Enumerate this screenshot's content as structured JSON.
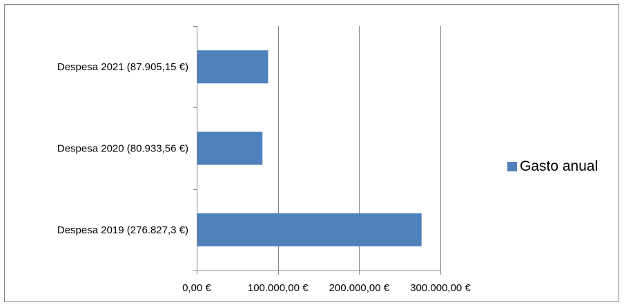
{
  "chart_data": {
    "type": "bar",
    "orientation": "horizontal",
    "title": "",
    "xlabel": "",
    "ylabel": "",
    "categories": [
      "Despesa 2019 (276.827,3 €)",
      "Despesa 2020 (80.933,56 €)",
      "Despesa 2021 (87.905,15 €)"
    ],
    "series": [
      {
        "name": "Gasto anual",
        "values": [
          276827.3,
          80933.56,
          87905.15
        ],
        "color": "#4F81BD"
      }
    ],
    "xlim": [
      0,
      300000
    ],
    "x_ticks": [
      0,
      100000,
      200000,
      300000
    ],
    "x_tick_labels": [
      "0,00 €",
      "100.000,00 €",
      "200.000,00 €",
      "300.000,00 €"
    ],
    "grid": "vertical major gridlines",
    "legend_position": "right",
    "colors": {
      "bar": "#4F81BD",
      "gridline": "#868686",
      "axis": "#868686",
      "border": "#868686"
    }
  }
}
